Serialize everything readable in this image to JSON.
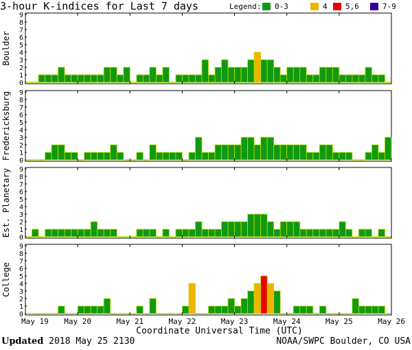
{
  "title": "3-hour K-indices for Last 7 days",
  "legend": {
    "label": "Legend:",
    "items": [
      {
        "label": "0-3",
        "color": "#119911"
      },
      {
        "label": "4",
        "color": "#f0b400"
      },
      {
        "label": "5,6",
        "color": "#ee0000"
      },
      {
        "label": "7-9",
        "color": "#330099"
      }
    ]
  },
  "footer": {
    "updated_label": "Updated",
    "updated_value": "2018 May 25 2130",
    "source": "NOAA/SWPC Boulder, CO USA"
  },
  "chart_data": {
    "type": "bar",
    "xlabel": "Coordinate Universal Time (UTC)",
    "x_ticks": [
      "May 19",
      "May 20",
      "May 21",
      "May 22",
      "May 23",
      "May 24",
      "May 25",
      "May 26"
    ],
    "y_ticks": [
      "0",
      "1",
      "2",
      "3",
      "4",
      "5",
      "6",
      "7",
      "8",
      "9"
    ],
    "ylim": [
      0,
      9
    ],
    "interval_hours": 3,
    "color_scale": {
      "0-3": "#119911",
      "4": "#f0b400",
      "5,6": "#ee0000",
      "7-9": "#330099"
    },
    "series": [
      {
        "name": "Boulder",
        "values": [
          0,
          0,
          1,
          1,
          1,
          2,
          1,
          1,
          1,
          1,
          1,
          1,
          2,
          2,
          1,
          2,
          0,
          1,
          1,
          2,
          1,
          2,
          0,
          1,
          1,
          1,
          1,
          3,
          1,
          2,
          3,
          2,
          2,
          2,
          3,
          4,
          3,
          3,
          2,
          1,
          2,
          2,
          2,
          1,
          1,
          2,
          2,
          2,
          1,
          1,
          1,
          1,
          2,
          1,
          1,
          0
        ]
      },
      {
        "name": "Fredericksburg",
        "values": [
          0,
          0,
          0,
          1,
          2,
          2,
          1,
          1,
          0,
          1,
          1,
          1,
          1,
          2,
          1,
          0,
          0,
          1,
          0,
          2,
          1,
          1,
          1,
          1,
          0,
          1,
          3,
          1,
          1,
          2,
          2,
          2,
          2,
          3,
          3,
          2,
          3,
          3,
          2,
          2,
          2,
          2,
          2,
          1,
          1,
          2,
          2,
          1,
          1,
          1,
          0,
          0,
          1,
          2,
          1,
          3
        ]
      },
      {
        "name": "Est. Planetary",
        "values": [
          0,
          1,
          0,
          1,
          1,
          1,
          1,
          1,
          1,
          1,
          2,
          1,
          1,
          1,
          0,
          0,
          0,
          1,
          1,
          1,
          0,
          1,
          0,
          1,
          1,
          1,
          2,
          1,
          1,
          1,
          2,
          2,
          2,
          2,
          3,
          3,
          3,
          2,
          1,
          2,
          2,
          2,
          1,
          1,
          1,
          1,
          1,
          1,
          2,
          1,
          0,
          1,
          1,
          0,
          1,
          0
        ]
      },
      {
        "name": "College",
        "values": [
          0,
          0,
          0,
          0,
          0,
          1,
          0,
          0,
          1,
          1,
          1,
          1,
          2,
          0,
          0,
          0,
          0,
          1,
          0,
          2,
          0,
          0,
          0,
          0,
          1,
          4,
          0,
          0,
          1,
          1,
          1,
          2,
          1,
          2,
          3,
          4,
          5,
          4,
          3,
          0,
          0,
          1,
          1,
          1,
          0,
          1,
          0,
          0,
          0,
          0,
          2,
          1,
          1,
          1,
          1,
          0
        ]
      }
    ]
  }
}
